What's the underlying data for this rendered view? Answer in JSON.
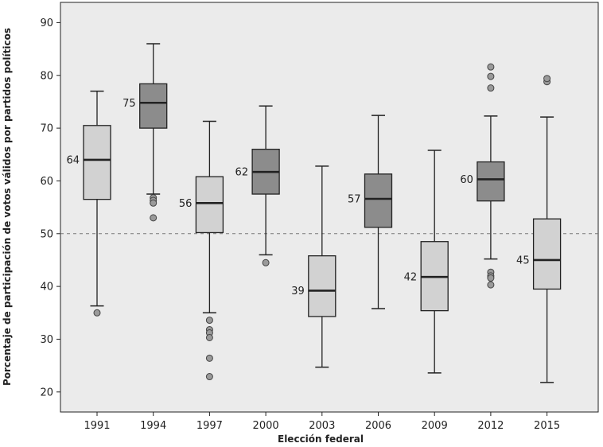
{
  "chart_data": {
    "type": "boxplot",
    "xlabel": "Elección federal",
    "ylabel": "Porcentaje de participación de votos válidos por partidos políticos",
    "ylim": [
      18,
      95
    ],
    "yticks": [
      20,
      30,
      40,
      50,
      60,
      70,
      80,
      90
    ],
    "reference_line": {
      "y": 50,
      "style": "dashed"
    },
    "grid": false,
    "categories": [
      "1991",
      "1994",
      "1997",
      "2000",
      "2003",
      "2006",
      "2009",
      "2012",
      "2015"
    ],
    "boxes": [
      {
        "category": "1991",
        "min": 36.3,
        "q1": 56.5,
        "median": 64,
        "q3": 70.5,
        "max": 77,
        "outliers": [
          35
        ],
        "label": "64",
        "fill": "light"
      },
      {
        "category": "1994",
        "min": 57.5,
        "q1": 70,
        "median": 74.8,
        "q3": 78.4,
        "max": 86,
        "outliers": [
          56.8,
          56.3,
          55.8,
          53
        ],
        "label": "75",
        "fill": "dark"
      },
      {
        "category": "1997",
        "min": 35,
        "q1": 50.2,
        "median": 55.8,
        "q3": 60.8,
        "max": 71.3,
        "outliers": [
          33.6,
          31.8,
          31.2,
          30.3,
          26.4,
          22.9
        ],
        "label": "56",
        "fill": "light"
      },
      {
        "category": "2000",
        "min": 46,
        "q1": 57.5,
        "median": 61.7,
        "q3": 66,
        "max": 74.2,
        "outliers": [
          44.5
        ],
        "label": "62",
        "fill": "dark"
      },
      {
        "category": "2003",
        "min": 24.7,
        "q1": 34.3,
        "median": 39.2,
        "q3": 45.8,
        "max": 62.8,
        "outliers": [],
        "label": "39",
        "fill": "light"
      },
      {
        "category": "2006",
        "min": 35.8,
        "q1": 51.2,
        "median": 56.6,
        "q3": 61.3,
        "max": 72.4,
        "outliers": [],
        "label": "57",
        "fill": "dark"
      },
      {
        "category": "2009",
        "min": 23.6,
        "q1": 35.4,
        "median": 41.8,
        "q3": 48.5,
        "max": 65.8,
        "outliers": [],
        "label": "42",
        "fill": "light"
      },
      {
        "category": "2012",
        "min": 45.2,
        "q1": 56.2,
        "median": 60.3,
        "q3": 63.6,
        "max": 72.3,
        "outliers": [
          42.7,
          42,
          41.6,
          40.3,
          77.6,
          79.8,
          81.6
        ],
        "label": "60",
        "fill": "dark"
      },
      {
        "category": "2015",
        "min": 21.8,
        "q1": 39.5,
        "median": 45,
        "q3": 52.8,
        "max": 72.1,
        "outliers": [
          78.8,
          79.4
        ],
        "label": "45",
        "fill": "light"
      }
    ]
  },
  "colors": {
    "background": "#ffffff",
    "plot_background": "#ebebeb",
    "box_light": "#d2d2d2",
    "box_dark": "#8c8c8c",
    "outlier_fill": "#9a9a9a",
    "ink": "#222222",
    "reference_line": "#777777"
  }
}
